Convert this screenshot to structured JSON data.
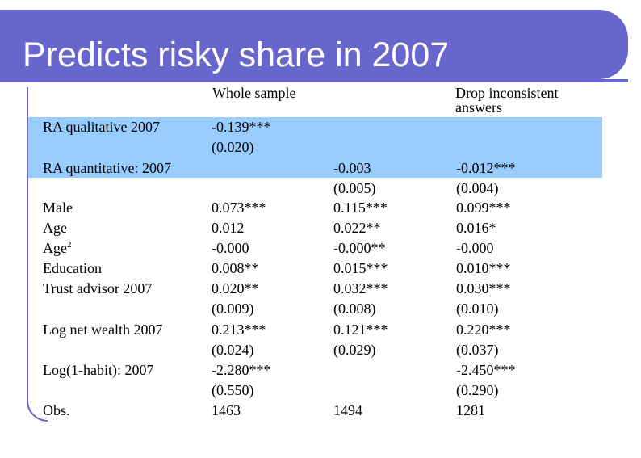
{
  "title": "Predicts risky share in 2007",
  "headers": {
    "whole_sample": "Whole sample",
    "drop_inconsistent_line1": "Drop inconsistent",
    "drop_inconsistent_line2": "answers"
  },
  "rows": {
    "ra_qualitative": {
      "label": "RA qualitative 2007",
      "a": "-0.139***",
      "a_se": "(0.020)"
    },
    "ra_quantitative": {
      "label": "RA quantitative: 2007",
      "b": "-0.003",
      "b_se": "(0.005)",
      "c": "-0.012***",
      "c_se": "(0.004)"
    },
    "male": {
      "label": "Male",
      "a": "0.073***",
      "b": "0.115***",
      "c": "0.099***"
    },
    "age": {
      "label": "Age",
      "a": "0.012",
      "b": "0.022**",
      "c": "0.016*"
    },
    "age2": {
      "label": "Age",
      "sup": "2",
      "a": "-0.000",
      "b": "-0.000**",
      "c": "-0.000"
    },
    "education": {
      "label": "Education",
      "a": "0.008**",
      "b": "0.015***",
      "c": "0.010***"
    },
    "trust_advisor": {
      "label": "Trust advisor 2007",
      "a": "0.020**",
      "a_se": "(0.009)",
      "b": "0.032***",
      "b_se": "(0.008)",
      "c": "0.030***",
      "c_se": "(0.010)"
    },
    "log_net_wealth": {
      "label": "Log net wealth 2007",
      "a": "0.213***",
      "a_se": "(0.024)",
      "b": "0.121***",
      "b_se": "(0.029)",
      "c": "0.220***",
      "c_se": "(0.037)"
    },
    "log_habit": {
      "label": "Log(1-habit): 2007",
      "a": "-2.280***",
      "a_se": "(0.550)",
      "c": "-2.450***",
      "c_se": "(0.290)"
    },
    "obs": {
      "label": "Obs.",
      "a": "1463",
      "b": "1494",
      "c": "1281"
    }
  }
}
